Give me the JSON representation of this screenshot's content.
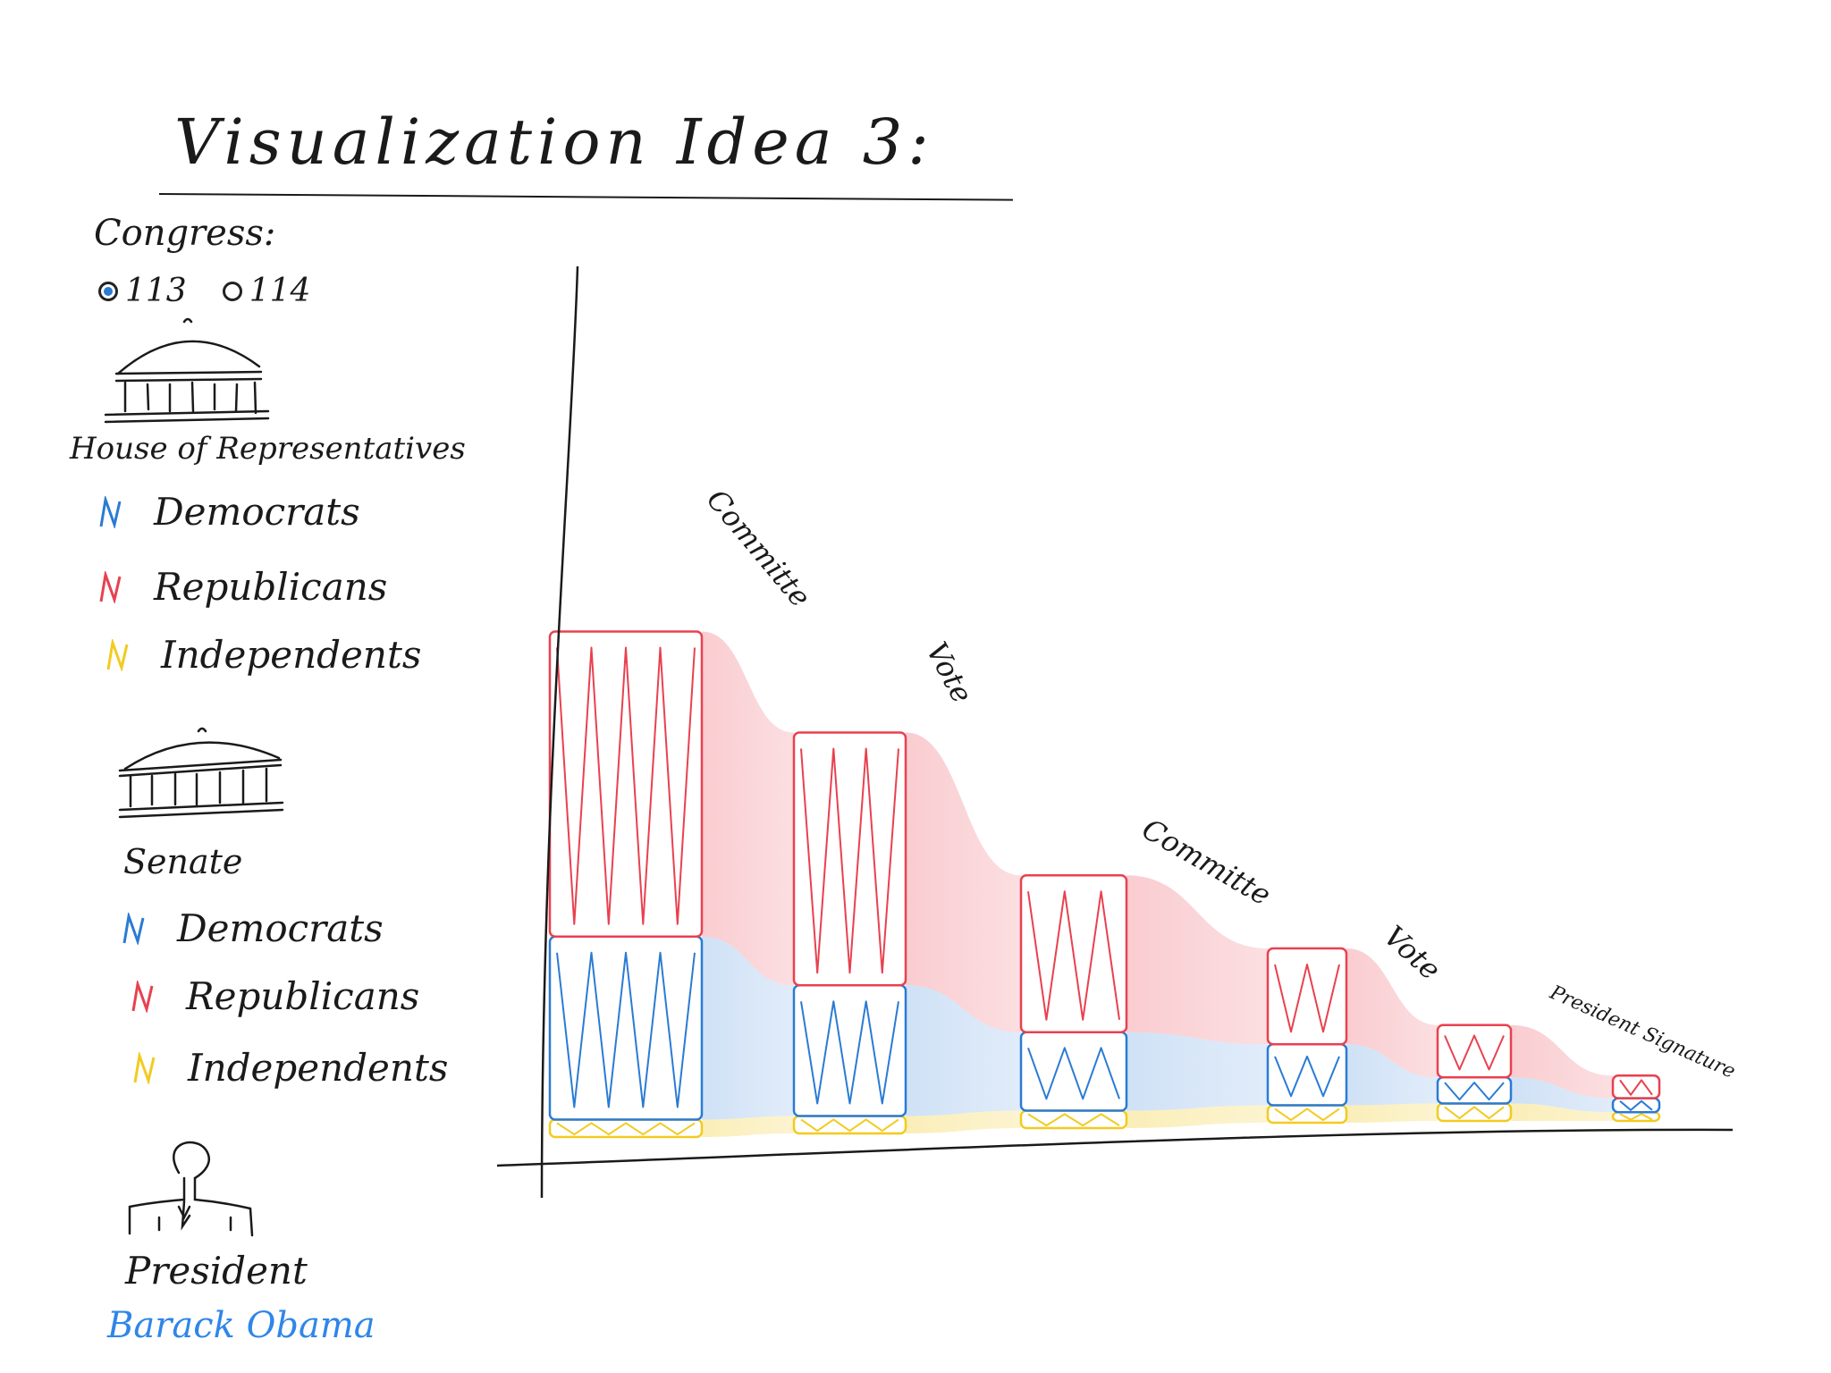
{
  "title": "Visualization Idea 3:",
  "congress": {
    "label": "Congress:",
    "options": [
      {
        "label": "113",
        "selected": true
      },
      {
        "label": "114",
        "selected": false
      }
    ]
  },
  "house": {
    "label": "House of Representatives",
    "legend": [
      {
        "label": "Democrats",
        "color": "#2a7bd4"
      },
      {
        "label": "Republicans",
        "color": "#e8414f"
      },
      {
        "label": "Independents",
        "color": "#f2cb1f"
      }
    ]
  },
  "senate": {
    "label": "Senate",
    "legend": [
      {
        "label": "Democrats",
        "color": "#2a7bd4"
      },
      {
        "label": "Republicans",
        "color": "#e8414f"
      },
      {
        "label": "Independents",
        "color": "#f2cb1f"
      }
    ]
  },
  "president": {
    "label": "President",
    "name": "Barack Obama",
    "name_color": "#2f86e8"
  },
  "step_labels": [
    "Committe",
    "Vote",
    "Committe",
    "Vote",
    "President Signature"
  ],
  "chart_data": {
    "type": "bar",
    "stacked": true,
    "categories": [
      "",
      "",
      "",
      "",
      "",
      ""
    ],
    "series": [
      {
        "name": "Independents",
        "color": "#f2cb1f",
        "values": [
          1,
          1,
          1,
          1,
          1,
          0.5
        ]
      },
      {
        "name": "Democrats",
        "color": "#2a7bd4",
        "values": [
          10.5,
          7.5,
          4.5,
          3.5,
          1.5,
          0.8
        ]
      },
      {
        "name": "Republicans",
        "color": "#e8414f",
        "values": [
          17.5,
          14.5,
          9,
          5.5,
          3,
          1.3
        ]
      }
    ],
    "ylim": [
      0,
      37
    ]
  }
}
